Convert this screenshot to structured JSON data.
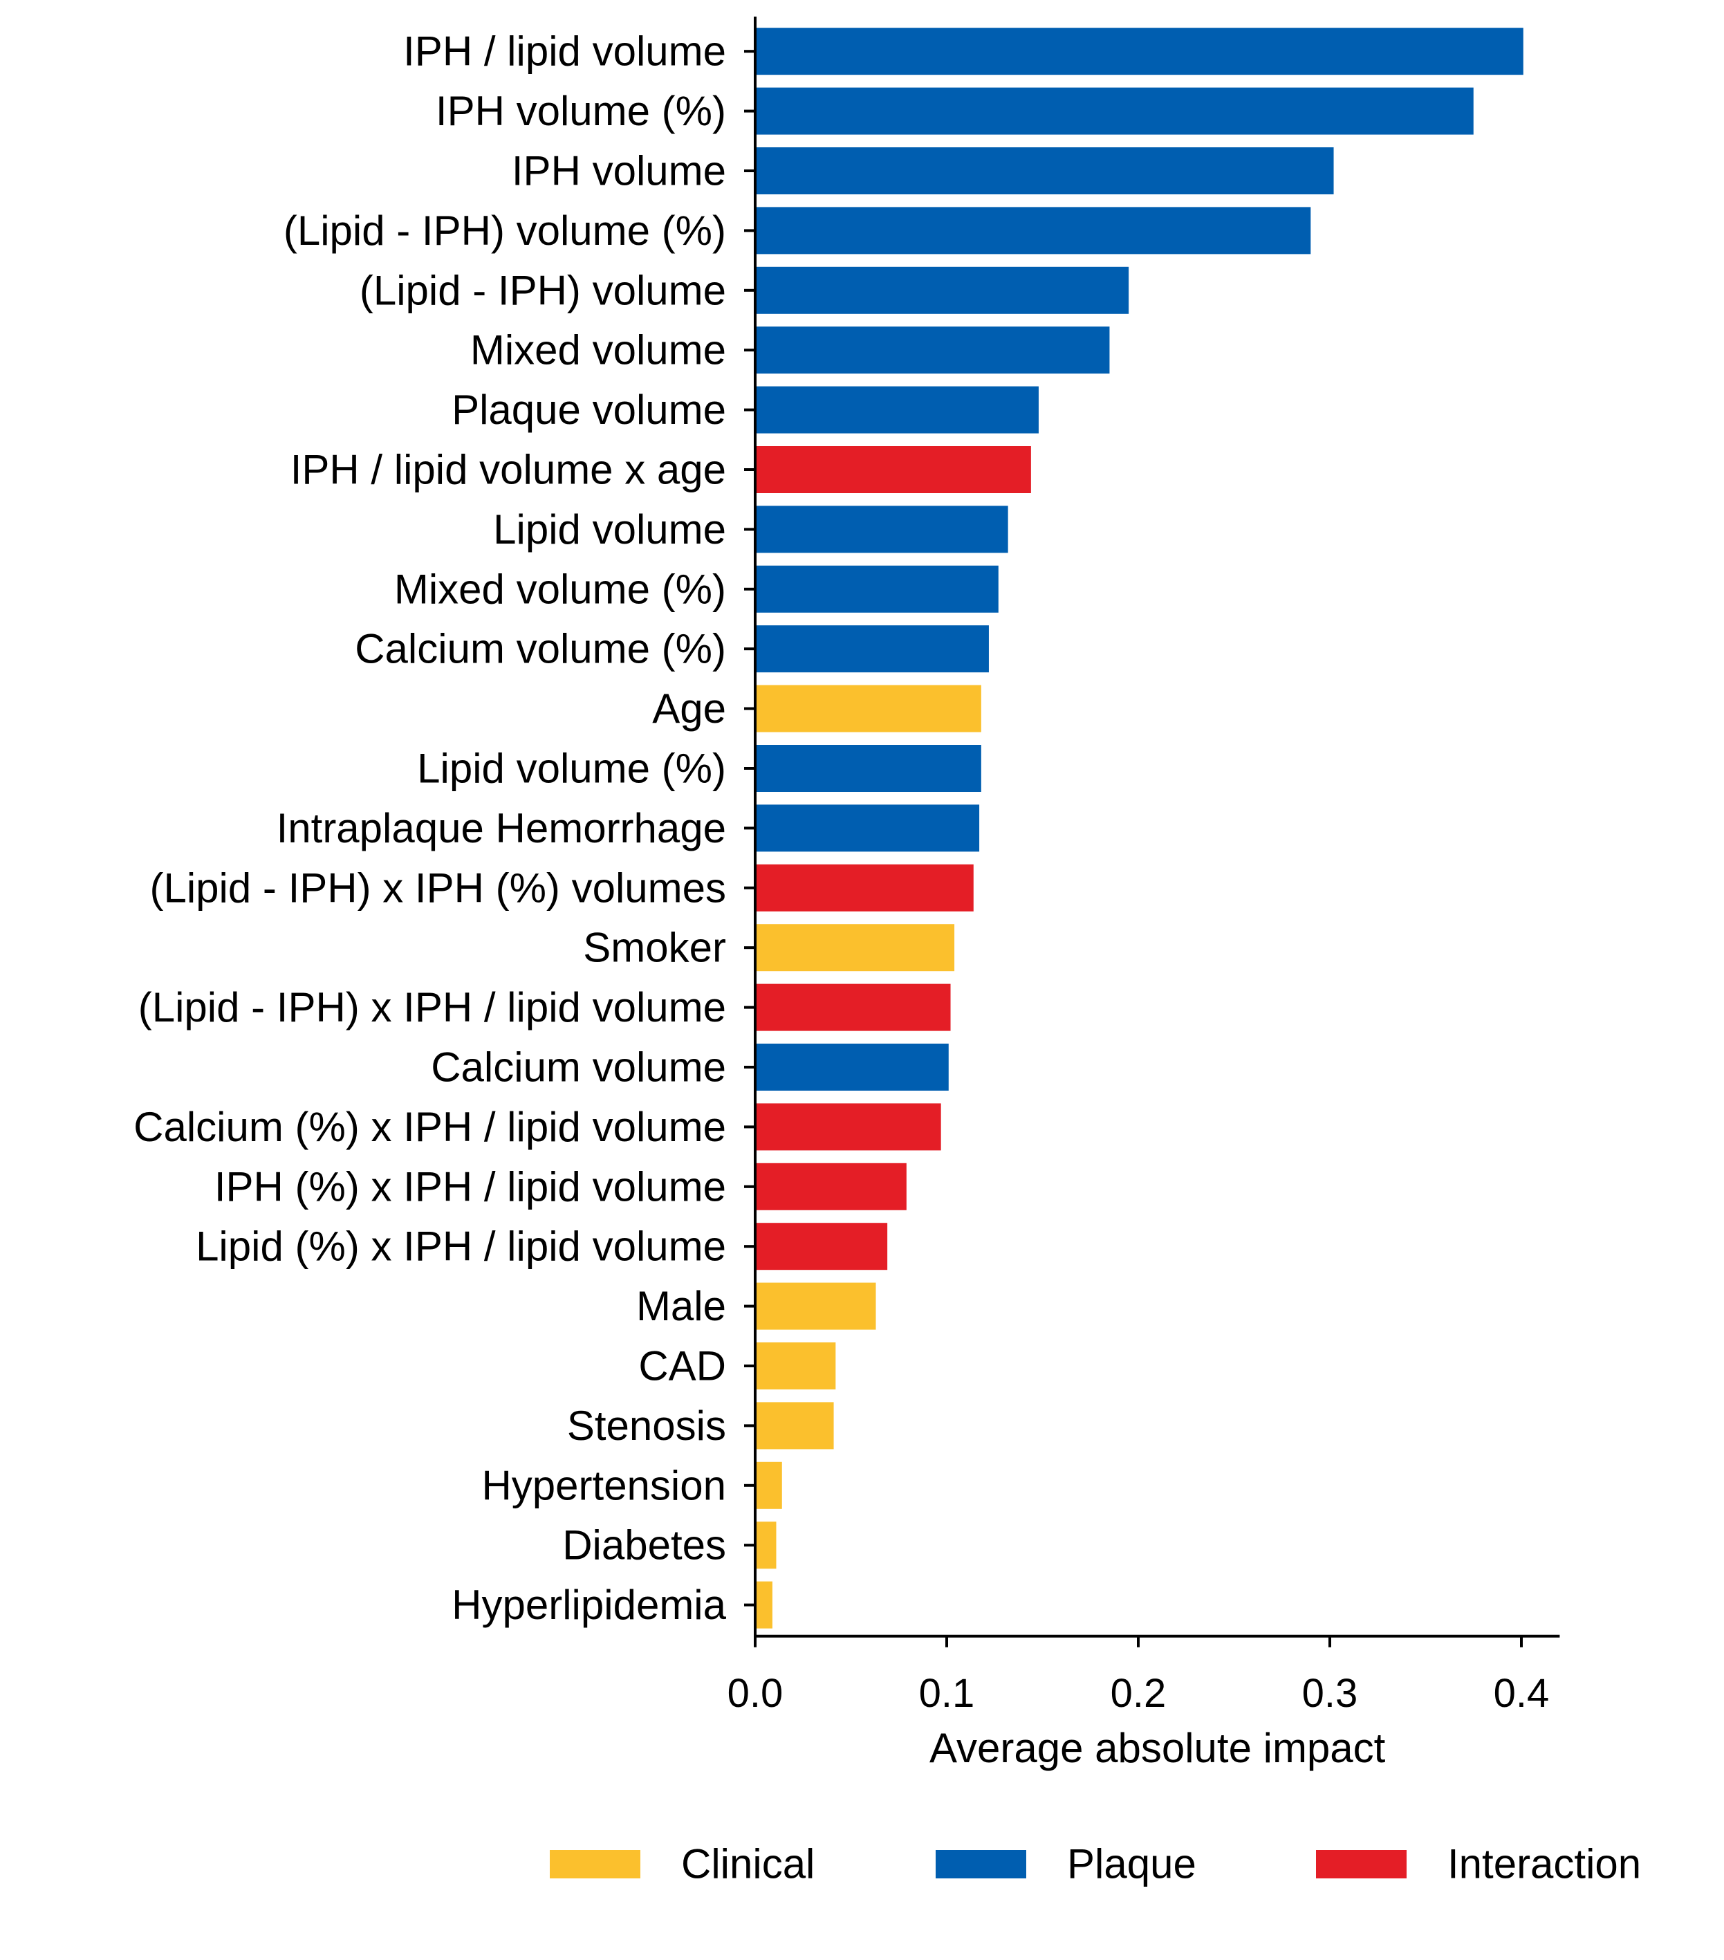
{
  "chart_data": {
    "type": "bar",
    "orientation": "horizontal",
    "xlabel": "Average absolute impact",
    "xlim": [
      0,
      0.42
    ],
    "xticks": [
      0.0,
      0.1,
      0.2,
      0.3,
      0.4
    ],
    "xtick_labels": [
      "0.0",
      "0.1",
      "0.2",
      "0.3",
      "0.4"
    ],
    "grid": false,
    "legend": {
      "placement": "bottom",
      "entries": [
        {
          "name": "Clinical",
          "color": "#FBC02D"
        },
        {
          "name": "Plaque",
          "color": "#005EB0"
        },
        {
          "name": "Interaction",
          "color": "#E41E26"
        }
      ]
    },
    "bars": [
      {
        "label": "IPH / lipid volume",
        "value": 0.401,
        "group": "Plaque"
      },
      {
        "label": "IPH volume (%)",
        "value": 0.375,
        "group": "Plaque"
      },
      {
        "label": "IPH volume",
        "value": 0.302,
        "group": "Plaque"
      },
      {
        "label": "(Lipid - IPH) volume (%)",
        "value": 0.29,
        "group": "Plaque"
      },
      {
        "label": "(Lipid - IPH) volume",
        "value": 0.195,
        "group": "Plaque"
      },
      {
        "label": "Mixed volume",
        "value": 0.185,
        "group": "Plaque"
      },
      {
        "label": "Plaque volume",
        "value": 0.148,
        "group": "Plaque"
      },
      {
        "label": "IPH / lipid volume x age",
        "value": 0.144,
        "group": "Interaction"
      },
      {
        "label": "Lipid volume",
        "value": 0.132,
        "group": "Plaque"
      },
      {
        "label": "Mixed volume (%)",
        "value": 0.127,
        "group": "Plaque"
      },
      {
        "label": "Calcium volume (%)",
        "value": 0.122,
        "group": "Plaque"
      },
      {
        "label": "Age",
        "value": 0.118,
        "group": "Clinical"
      },
      {
        "label": "Lipid volume (%)",
        "value": 0.118,
        "group": "Plaque"
      },
      {
        "label": "Intraplaque Hemorrhage",
        "value": 0.117,
        "group": "Plaque"
      },
      {
        "label": "(Lipid - IPH) x IPH (%) volumes",
        "value": 0.114,
        "group": "Interaction"
      },
      {
        "label": "Smoker",
        "value": 0.104,
        "group": "Clinical"
      },
      {
        "label": "(Lipid - IPH) x IPH / lipid volume",
        "value": 0.102,
        "group": "Interaction"
      },
      {
        "label": "Calcium volume",
        "value": 0.101,
        "group": "Plaque"
      },
      {
        "label": "Calcium (%) x IPH / lipid volume",
        "value": 0.097,
        "group": "Interaction"
      },
      {
        "label": "IPH (%) x IPH / lipid volume",
        "value": 0.079,
        "group": "Interaction"
      },
      {
        "label": "Lipid (%) x IPH / lipid volume",
        "value": 0.069,
        "group": "Interaction"
      },
      {
        "label": "Male",
        "value": 0.063,
        "group": "Clinical"
      },
      {
        "label": "CAD",
        "value": 0.042,
        "group": "Clinical"
      },
      {
        "label": "Stenosis",
        "value": 0.041,
        "group": "Clinical"
      },
      {
        "label": "Hypertension",
        "value": 0.014,
        "group": "Clinical"
      },
      {
        "label": "Diabetes",
        "value": 0.011,
        "group": "Clinical"
      },
      {
        "label": "Hyperlipidemia",
        "value": 0.009,
        "group": "Clinical"
      }
    ]
  }
}
